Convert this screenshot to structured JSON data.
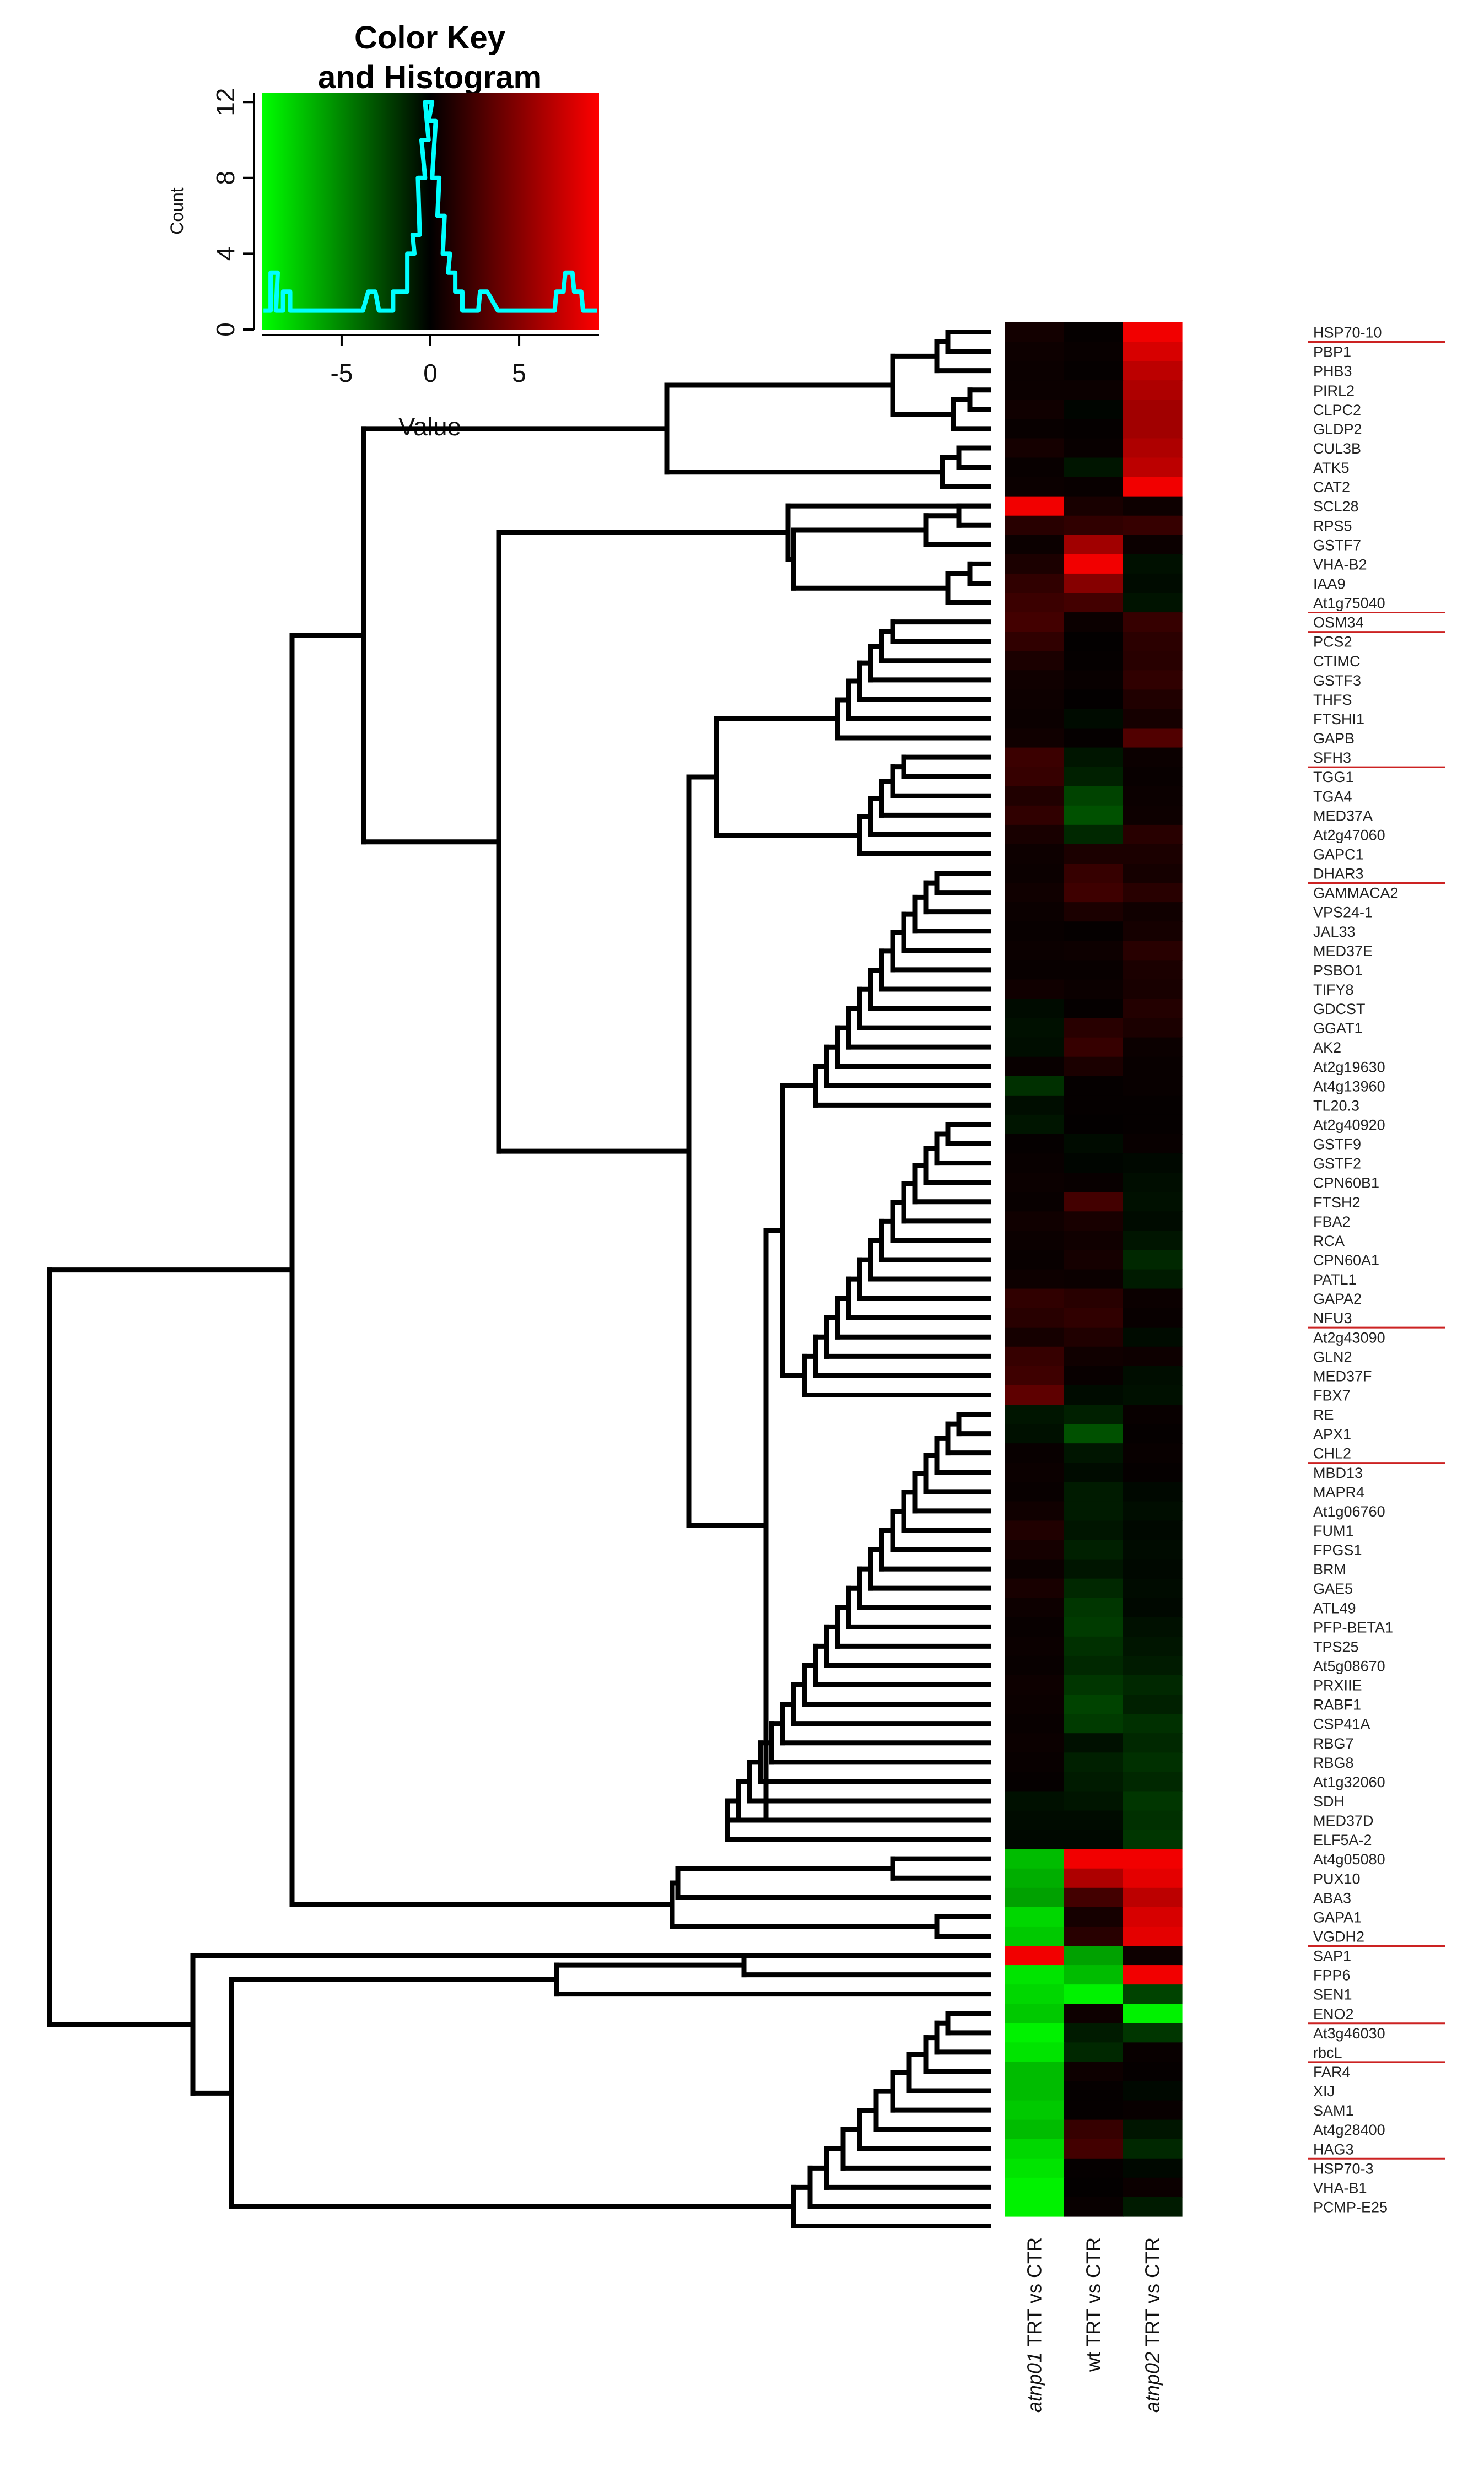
{
  "colors": {
    "low": "#00ff00",
    "mid": "#000000",
    "high": "#ff0000",
    "histogram": "#00ffff",
    "underline": "#cc2222"
  },
  "chart_data": [
    {
      "type": "histogram",
      "title": "Color Key\nand Histogram",
      "title_line1": "Color Key",
      "title_line2": "and Histogram",
      "xlabel": "Value",
      "ylabel": "Count",
      "xlim": [
        -9.5,
        9.5
      ],
      "ylim": [
        0,
        12.5
      ],
      "xticks": [
        "-5",
        "0",
        "5"
      ],
      "yticks": [
        "0",
        "4",
        "8",
        "12"
      ],
      "colormap": [
        "#00ff00",
        "#000000",
        "#ff0000"
      ],
      "bins": [
        {
          "x": -9.2,
          "count": 1
        },
        {
          "x": -8.8,
          "count": 3
        },
        {
          "x": -8.5,
          "count": 1
        },
        {
          "x": -8.1,
          "count": 2
        },
        {
          "x": -7.7,
          "count": 1
        },
        {
          "x": -7.0,
          "count": 1
        },
        {
          "x": -6.2,
          "count": 1
        },
        {
          "x": -5.0,
          "count": 1
        },
        {
          "x": -4.0,
          "count": 1
        },
        {
          "x": -3.3,
          "count": 2
        },
        {
          "x": -2.7,
          "count": 1
        },
        {
          "x": -2.3,
          "count": 1
        },
        {
          "x": -1.9,
          "count": 2
        },
        {
          "x": -1.5,
          "count": 2
        },
        {
          "x": -1.1,
          "count": 4
        },
        {
          "x": -0.8,
          "count": 5
        },
        {
          "x": -0.5,
          "count": 8
        },
        {
          "x": -0.3,
          "count": 10
        },
        {
          "x": -0.1,
          "count": 12
        },
        {
          "x": 0.1,
          "count": 11
        },
        {
          "x": 0.3,
          "count": 8
        },
        {
          "x": 0.6,
          "count": 6
        },
        {
          "x": 0.9,
          "count": 4
        },
        {
          "x": 1.2,
          "count": 3
        },
        {
          "x": 1.6,
          "count": 2
        },
        {
          "x": 2.0,
          "count": 1
        },
        {
          "x": 2.5,
          "count": 1
        },
        {
          "x": 3.0,
          "count": 2
        },
        {
          "x": 4.0,
          "count": 1
        },
        {
          "x": 6.0,
          "count": 1
        },
        {
          "x": 6.8,
          "count": 1
        },
        {
          "x": 7.3,
          "count": 2
        },
        {
          "x": 7.8,
          "count": 3
        },
        {
          "x": 8.3,
          "count": 2
        },
        {
          "x": 8.8,
          "count": 1
        },
        {
          "x": 9.2,
          "count": 1
        }
      ]
    },
    {
      "type": "heatmap",
      "columns": [
        {
          "italic": "atnp01",
          "rest": " TRT vs CTR"
        },
        {
          "italic": "",
          "rest": "wt TRT vs CTR"
        },
        {
          "italic": "atnp02",
          "rest": " TRT vs CTR"
        }
      ],
      "value_range": [
        -9.5,
        9.5
      ],
      "rows": [
        {
          "gene": "HSP70-10",
          "values": [
            0.7,
            0.2,
            9.0
          ],
          "underlined": true
        },
        {
          "gene": "PBP1",
          "values": [
            0.5,
            0.3,
            8.0
          ]
        },
        {
          "gene": "PHB3",
          "values": [
            0.4,
            0.2,
            7.0
          ]
        },
        {
          "gene": "PIRL2",
          "values": [
            0.4,
            0.4,
            6.5
          ]
        },
        {
          "gene": "CLPC2",
          "values": [
            0.6,
            -0.2,
            6.0
          ]
        },
        {
          "gene": "GLDP2",
          "values": [
            0.3,
            0.2,
            6.0
          ]
        },
        {
          "gene": "CUL3B",
          "values": [
            0.8,
            0.3,
            6.5
          ]
        },
        {
          "gene": "ATK5",
          "values": [
            0.3,
            -0.8,
            7.0
          ]
        },
        {
          "gene": "CAT2",
          "values": [
            0.4,
            0.3,
            9.0
          ]
        },
        {
          "gene": "SCL28",
          "values": [
            9.0,
            0.9,
            0.5
          ]
        },
        {
          "gene": "RPS5",
          "values": [
            1.5,
            1.8,
            2.0
          ]
        },
        {
          "gene": "GSTF7",
          "values": [
            0.4,
            6.0,
            0.4
          ]
        },
        {
          "gene": "VHA-B2",
          "values": [
            1.0,
            9.0,
            -0.6
          ]
        },
        {
          "gene": "IAA9",
          "values": [
            1.8,
            5.0,
            -0.4
          ]
        },
        {
          "gene": "At1g75040",
          "values": [
            2.2,
            2.5,
            -0.7
          ],
          "underlined": true
        },
        {
          "gene": "OSM34",
          "values": [
            2.5,
            0.4,
            2.0
          ],
          "underlined": true
        },
        {
          "gene": "PCS2",
          "values": [
            1.8,
            0.1,
            1.6
          ]
        },
        {
          "gene": "CTIMC",
          "values": [
            1.0,
            0.2,
            1.5
          ]
        },
        {
          "gene": "GSTF3",
          "values": [
            0.6,
            0.3,
            1.8
          ]
        },
        {
          "gene": "THFS",
          "values": [
            0.5,
            0.1,
            1.2
          ]
        },
        {
          "gene": "FTSHI1",
          "values": [
            0.4,
            -0.4,
            0.8
          ]
        },
        {
          "gene": "GAPB",
          "values": [
            0.6,
            0.2,
            3.0
          ]
        },
        {
          "gene": "SFH3",
          "values": [
            2.2,
            -0.8,
            0.4
          ],
          "underlined": true
        },
        {
          "gene": "TGG1",
          "values": [
            2.0,
            -1.2,
            0.3
          ]
        },
        {
          "gene": "TGA4",
          "values": [
            1.2,
            -2.5,
            0.4
          ]
        },
        {
          "gene": "MED37A",
          "values": [
            1.8,
            -3.0,
            0.5
          ]
        },
        {
          "gene": "At2g47060",
          "values": [
            0.9,
            -1.5,
            1.5
          ]
        },
        {
          "gene": "GAPC1",
          "values": [
            0.5,
            1.0,
            1.0
          ]
        },
        {
          "gene": "DHAR3",
          "values": [
            0.4,
            2.0,
            0.8
          ],
          "underlined": true
        },
        {
          "gene": "GAMMACA2",
          "values": [
            0.6,
            2.3,
            1.5
          ]
        },
        {
          "gene": "VPS24-1",
          "values": [
            0.4,
            1.0,
            0.6
          ]
        },
        {
          "gene": "JAL33",
          "values": [
            0.3,
            0.2,
            0.8
          ]
        },
        {
          "gene": "MED37E",
          "values": [
            0.4,
            0.5,
            1.5
          ]
        },
        {
          "gene": "PSBO1",
          "values": [
            0.3,
            0.3,
            1.0
          ]
        },
        {
          "gene": "TIFY8",
          "values": [
            0.6,
            0.4,
            0.9
          ]
        },
        {
          "gene": "GDCST",
          "values": [
            -0.4,
            0.2,
            1.3
          ]
        },
        {
          "gene": "GGAT1",
          "values": [
            -0.6,
            1.5,
            1.0
          ]
        },
        {
          "gene": "AK2",
          "values": [
            -0.5,
            2.0,
            0.4
          ]
        },
        {
          "gene": "At2g19630",
          "values": [
            0.3,
            1.0,
            0.3
          ]
        },
        {
          "gene": "At4g13960",
          "values": [
            -1.8,
            0.2,
            0.3
          ]
        },
        {
          "gene": "TL20.3",
          "values": [
            -0.5,
            0.2,
            0.2
          ]
        },
        {
          "gene": "At2g40920",
          "values": [
            -0.8,
            0.1,
            0.2
          ]
        },
        {
          "gene": "GSTF9",
          "values": [
            0.2,
            -0.4,
            0.3
          ]
        },
        {
          "gene": "GSTF2",
          "values": [
            0.3,
            -0.2,
            -0.3
          ]
        },
        {
          "gene": "CPN60B1",
          "values": [
            0.4,
            0.3,
            -0.5
          ]
        },
        {
          "gene": "FTSH2",
          "values": [
            0.3,
            2.5,
            -0.6
          ]
        },
        {
          "gene": "FBA2",
          "values": [
            0.6,
            0.9,
            -0.4
          ]
        },
        {
          "gene": "RCA",
          "values": [
            0.4,
            0.6,
            -0.8
          ]
        },
        {
          "gene": "CPN60A1",
          "values": [
            0.3,
            0.8,
            -1.5
          ]
        },
        {
          "gene": "PATL1",
          "values": [
            0.5,
            0.4,
            -1.0
          ]
        },
        {
          "gene": "GAPA2",
          "values": [
            1.8,
            1.5,
            0.4
          ]
        },
        {
          "gene": "NFU3",
          "values": [
            1.5,
            1.8,
            0.3
          ],
          "underlined": true
        },
        {
          "gene": "At2g43090",
          "values": [
            0.8,
            1.2,
            -0.4
          ]
        },
        {
          "gene": "GLN2",
          "values": [
            2.0,
            0.6,
            0.5
          ]
        },
        {
          "gene": "MED37F",
          "values": [
            2.3,
            0.3,
            -0.5
          ]
        },
        {
          "gene": "FBX7",
          "values": [
            3.5,
            -0.4,
            -0.6
          ]
        },
        {
          "gene": "RE",
          "values": [
            -0.8,
            -1.2,
            0.3
          ]
        },
        {
          "gene": "APX1",
          "values": [
            -0.6,
            -3.0,
            0.2
          ]
        },
        {
          "gene": "CHL2",
          "values": [
            0.3,
            -0.8,
            0.3
          ],
          "underlined": true
        },
        {
          "gene": "MBD13",
          "values": [
            0.4,
            -0.4,
            0.2
          ]
        },
        {
          "gene": "MAPR4",
          "values": [
            0.3,
            -1.0,
            -0.3
          ]
        },
        {
          "gene": "At1g06760",
          "values": [
            0.6,
            -1.0,
            -0.5
          ]
        },
        {
          "gene": "FUM1",
          "values": [
            1.2,
            -0.8,
            -0.3
          ]
        },
        {
          "gene": "FPGS1",
          "values": [
            0.8,
            -1.2,
            -0.4
          ]
        },
        {
          "gene": "BRM",
          "values": [
            0.4,
            -0.8,
            -0.3
          ]
        },
        {
          "gene": "GAE5",
          "values": [
            0.9,
            -1.5,
            -0.4
          ]
        },
        {
          "gene": "ATL49",
          "values": [
            0.5,
            -2.0,
            -0.3
          ]
        },
        {
          "gene": "PFP-BETA1",
          "values": [
            0.3,
            -2.2,
            -0.6
          ]
        },
        {
          "gene": "TPS25",
          "values": [
            0.4,
            -1.8,
            -0.8
          ]
        },
        {
          "gene": "At5g08670",
          "values": [
            0.3,
            -1.5,
            -1.0
          ]
        },
        {
          "gene": "PRXIIE",
          "values": [
            0.5,
            -2.0,
            -1.5
          ]
        },
        {
          "gene": "RABF1",
          "values": [
            0.4,
            -2.5,
            -1.2
          ]
        },
        {
          "gene": "CSP41A",
          "values": [
            0.3,
            -2.2,
            -1.8
          ]
        },
        {
          "gene": "RBG7",
          "values": [
            0.4,
            -0.6,
            -1.5
          ]
        },
        {
          "gene": "RBG8",
          "values": [
            0.3,
            -1.2,
            -1.8
          ]
        },
        {
          "gene": "At1g32060",
          "values": [
            0.2,
            -1.0,
            -1.5
          ]
        },
        {
          "gene": "SDH",
          "values": [
            -0.6,
            -0.8,
            -2.0
          ]
        },
        {
          "gene": "MED37D",
          "values": [
            -0.4,
            -0.4,
            -1.8
          ]
        },
        {
          "gene": "ELF5A-2",
          "values": [
            -0.3,
            -0.3,
            -2.0
          ]
        },
        {
          "gene": "At4g05080",
          "values": [
            -7.0,
            9.0,
            9.0
          ]
        },
        {
          "gene": "PUX10",
          "values": [
            -6.5,
            6.5,
            8.5
          ]
        },
        {
          "gene": "ABA3",
          "values": [
            -6.0,
            2.5,
            7.0
          ]
        },
        {
          "gene": "GAPA1",
          "values": [
            -8.0,
            0.8,
            8.0
          ]
        },
        {
          "gene": "VGDH2",
          "values": [
            -7.5,
            1.5,
            8.5
          ],
          "underlined": true
        },
        {
          "gene": "SAP1",
          "values": [
            9.0,
            -6.0,
            0.5
          ]
        },
        {
          "gene": "FPP6",
          "values": [
            -8.5,
            -7.0,
            9.0
          ]
        },
        {
          "gene": "SEN1",
          "values": [
            -8.0,
            -9.0,
            -2.5
          ]
        },
        {
          "gene": "ENO2",
          "values": [
            -7.5,
            0.5,
            -9.0
          ],
          "underlined": true
        },
        {
          "gene": "At3g46030",
          "values": [
            -9.0,
            -1.0,
            -2.0
          ]
        },
        {
          "gene": "rbcL",
          "values": [
            -8.5,
            -1.5,
            0.3
          ],
          "underlined": true
        },
        {
          "gene": "FAR4",
          "values": [
            -7.0,
            0.5,
            0.2
          ]
        },
        {
          "gene": "XIJ",
          "values": [
            -7.0,
            0.2,
            -0.3
          ]
        },
        {
          "gene": "SAM1",
          "values": [
            -7.5,
            0.2,
            0.3
          ]
        },
        {
          "gene": "At4g28400",
          "values": [
            -7.0,
            2.0,
            -0.8
          ]
        },
        {
          "gene": "HAG3",
          "values": [
            -8.0,
            2.5,
            -1.5
          ],
          "underlined": true
        },
        {
          "gene": "HSP70-3",
          "values": [
            -8.5,
            0.2,
            -0.3
          ]
        },
        {
          "gene": "VHA-B1",
          "values": [
            -9.0,
            0.1,
            0.4
          ]
        },
        {
          "gene": "PCMP-E25",
          "values": [
            -9.0,
            0.3,
            -1.0
          ]
        }
      ]
    }
  ]
}
